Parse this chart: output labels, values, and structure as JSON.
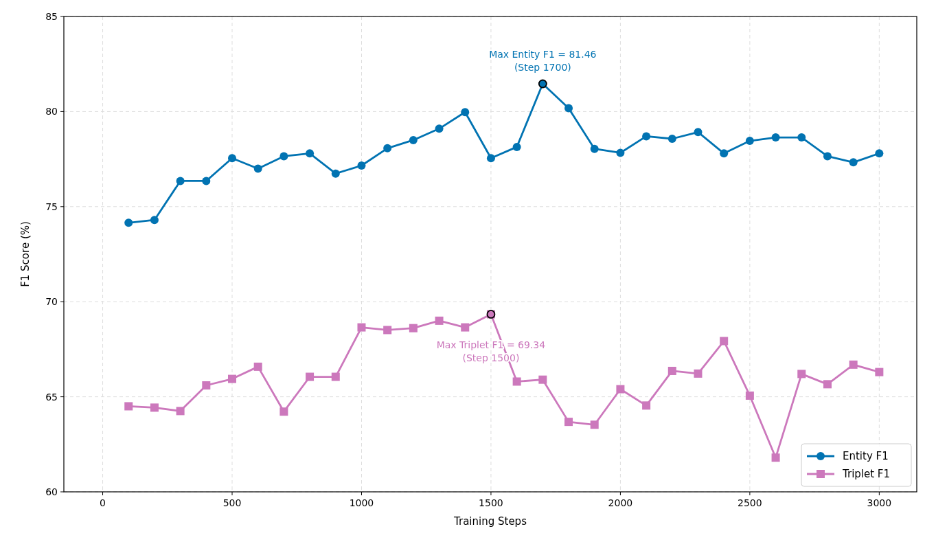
{
  "chart_data": {
    "type": "line",
    "xlabel": "Training Steps",
    "ylabel": "F1 Score (%)",
    "x": [
      100,
      200,
      300,
      400,
      500,
      600,
      700,
      800,
      900,
      1000,
      1100,
      1200,
      1300,
      1400,
      1500,
      1600,
      1700,
      1800,
      1900,
      2000,
      2100,
      2200,
      2300,
      2400,
      2500,
      2600,
      2700,
      2800,
      2900,
      3000
    ],
    "series": [
      {
        "name": "Entity F1",
        "color": "#0173b2",
        "marker": "circle",
        "values": [
          74.15,
          74.3,
          76.35,
          76.35,
          77.55,
          77.0,
          77.65,
          77.8,
          76.74,
          77.16,
          78.07,
          78.5,
          79.1,
          79.97,
          77.55,
          78.14,
          81.46,
          80.18,
          78.04,
          77.83,
          78.7,
          78.57,
          78.92,
          77.8,
          78.46,
          78.64,
          78.64,
          77.65,
          77.33,
          77.8
        ]
      },
      {
        "name": "Triplet F1",
        "color": "#cc78bc",
        "marker": "square",
        "values": [
          64.5,
          64.43,
          64.25,
          65.6,
          65.94,
          66.58,
          64.22,
          66.05,
          66.05,
          68.65,
          68.51,
          68.61,
          69.0,
          68.65,
          69.34,
          65.8,
          65.9,
          63.68,
          63.53,
          65.4,
          64.54,
          66.36,
          66.22,
          67.93,
          65.06,
          61.8,
          66.2,
          65.66,
          66.69,
          66.3
        ]
      }
    ],
    "annotations": [
      {
        "text": "Max Entity F1 = 81.46\n(Step 1700)",
        "x": 1700,
        "y": 81.46
      },
      {
        "text": "Max Triplet F1 = 69.34\n(Step 1500)",
        "x": 1500,
        "y": 69.34
      }
    ],
    "xlim": [
      -150,
      3145
    ],
    "xticks": [
      0,
      500,
      1000,
      1500,
      2000,
      2500,
      3000
    ],
    "ylim": [
      60,
      85
    ],
    "yticks": [
      60,
      65,
      70,
      75,
      80,
      85
    ],
    "grid": true,
    "legend": "bottom right",
    "line_style": "solid"
  }
}
